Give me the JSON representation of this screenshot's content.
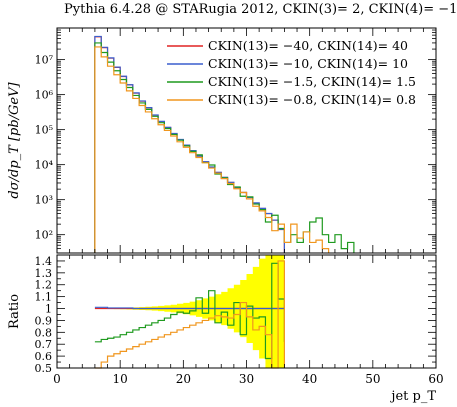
{
  "title": "Pythia 6.4.28 @ STARugia 2012, CKIN(3)= 2, CKIN(4)= −1",
  "chart_data": {
    "type": "line",
    "style": "histogram-step",
    "colors": {
      "red": "#e02424",
      "blue": "#3a5fcd",
      "green": "#1f9a1f",
      "orange": "#f0961e",
      "ratio_band": "#ffff00"
    },
    "main": {
      "ylabel": "dσ/dp_T [pb/GeV]",
      "yscale": "log",
      "ylim": [
        30,
        80000000
      ],
      "yticks": [
        {
          "v": 100,
          "label": "10²"
        },
        {
          "v": 1000,
          "label": "10³"
        },
        {
          "v": 10000,
          "label": "10⁴"
        },
        {
          "v": 100000,
          "label": "10⁵"
        },
        {
          "v": 1000000,
          "label": "10⁶"
        },
        {
          "v": 10000000,
          "label": "10⁷"
        }
      ],
      "legend_position": "top-right",
      "series": [
        {
          "name": "CKIN(13)= −40, CKIN(14)= 40",
          "color": "red",
          "x": [
            6,
            7,
            8,
            9,
            10,
            11,
            12,
            13,
            14,
            15,
            16,
            17,
            18,
            19,
            20,
            21,
            22,
            23,
            24,
            25,
            26,
            27,
            28,
            29,
            30,
            31,
            32,
            33,
            34,
            35
          ],
          "y": [
            45000000,
            22000000,
            11000000,
            6000000,
            3300000,
            1900000,
            1100000,
            650000,
            420000,
            260000,
            170000,
            115000,
            77000,
            52000,
            36000,
            25000,
            17500,
            12000,
            8500,
            6000,
            4300,
            3100,
            2200,
            1600,
            1150,
            800,
            560,
            400,
            260,
            140
          ]
        },
        {
          "name": "CKIN(13)= −10, CKIN(14)= 10",
          "color": "blue",
          "x": [
            6,
            7,
            8,
            9,
            10,
            11,
            12,
            13,
            14,
            15,
            16,
            17,
            18,
            19,
            20,
            21,
            22,
            23,
            24,
            25,
            26,
            27,
            28,
            29,
            30,
            31,
            32,
            33,
            34,
            35
          ],
          "y": [
            46000000,
            22500000,
            11200000,
            6100000,
            3350000,
            1920000,
            1120000,
            660000,
            425000,
            262000,
            172000,
            116000,
            78000,
            52500,
            36300,
            25300,
            17700,
            12100,
            8600,
            6050,
            4330,
            3120,
            2210,
            1610,
            1160,
            810,
            565,
            405,
            262,
            142
          ]
        },
        {
          "name": "CKIN(13)= −1.5, CKIN(14)= 1.5",
          "color": "green",
          "x": [
            6,
            7,
            8,
            9,
            10,
            11,
            12,
            13,
            14,
            15,
            16,
            17,
            18,
            19,
            20,
            21,
            22,
            23,
            24,
            25,
            26,
            27,
            28,
            29,
            30,
            31,
            32,
            33,
            34,
            35,
            36,
            37,
            38,
            39,
            40,
            41,
            42,
            43,
            44,
            45,
            46
          ],
          "y": [
            30000000,
            16000000,
            8500000,
            4800000,
            2700000,
            1600000,
            950000,
            580000,
            380000,
            240000,
            158000,
            108000,
            73000,
            50000,
            34500,
            24000,
            19000,
            11500,
            9800,
            5400,
            4200,
            2700,
            2300,
            1250,
            1200,
            750,
            520,
            230,
            360,
            150,
            60,
            100,
            60,
            120,
            230,
            300,
            100,
            60,
            100,
            40,
            60
          ]
        },
        {
          "name": "CKIN(13)= −0.8, CKIN(14)= 0.8",
          "color": "orange",
          "x": [
            6,
            7,
            8,
            9,
            10,
            11,
            12,
            13,
            14,
            15,
            16,
            17,
            18,
            19,
            20,
            21,
            22,
            23,
            24,
            25,
            26,
            27,
            28,
            29,
            30,
            31,
            32,
            33,
            34,
            35,
            36,
            37,
            38,
            39,
            40,
            41,
            42
          ],
          "y": [
            23000000,
            12000000,
            6500000,
            3700000,
            2150000,
            1280000,
            780000,
            490000,
            320000,
            205000,
            138000,
            95000,
            66000,
            45000,
            31500,
            22000,
            16000,
            11300,
            8000,
            5700,
            4000,
            2900,
            2050,
            1600,
            1050,
            650,
            480,
            310,
            130,
            200,
            60,
            200,
            80,
            120,
            60,
            70,
            40
          ]
        }
      ]
    },
    "ratio": {
      "ylabel": "Ratio",
      "ylim": [
        0.5,
        1.45
      ],
      "yticks": [
        0.5,
        0.6,
        0.7,
        0.8,
        0.9,
        1,
        1.1,
        1.2,
        1.3,
        1.4
      ],
      "xlabel": "jet p_T",
      "xlim": [
        0,
        60
      ],
      "xticks": [
        0,
        10,
        20,
        30,
        40,
        50,
        60
      ],
      "band_x": [
        6,
        7,
        8,
        9,
        10,
        11,
        12,
        13,
        14,
        15,
        16,
        17,
        18,
        19,
        20,
        21,
        22,
        23,
        24,
        25,
        26,
        27,
        28,
        29,
        30,
        31,
        32,
        33,
        34,
        35
      ],
      "band_half_width": [
        0.002,
        0.003,
        0.004,
        0.005,
        0.006,
        0.008,
        0.01,
        0.012,
        0.015,
        0.018,
        0.022,
        0.027,
        0.032,
        0.04,
        0.048,
        0.058,
        0.07,
        0.085,
        0.1,
        0.12,
        0.14,
        0.17,
        0.2,
        0.24,
        0.29,
        0.35,
        0.42,
        0.5,
        0.6,
        0.7
      ],
      "series": [
        {
          "color": "red",
          "x": [
            6,
            7,
            8,
            9,
            10,
            11,
            12,
            13,
            14,
            15,
            16,
            17,
            18,
            19,
            20,
            21,
            22,
            23,
            24,
            25,
            26,
            27,
            28,
            29,
            30,
            31,
            32,
            33,
            34,
            35
          ],
          "y": [
            1,
            1,
            1,
            1,
            1,
            1,
            1,
            1,
            1,
            1,
            1,
            1,
            1,
            1,
            1,
            1,
            1,
            1,
            1,
            1,
            1,
            1,
            1,
            1,
            1,
            1,
            1,
            1,
            1,
            1
          ]
        },
        {
          "color": "blue",
          "x": [
            6,
            7,
            8,
            9,
            10,
            11,
            12,
            13,
            14,
            15,
            16,
            17,
            18,
            19,
            20,
            21,
            22,
            23,
            24,
            25,
            26,
            27,
            28,
            29,
            30,
            31,
            32,
            33,
            34,
            35
          ],
          "y": [
            1.01,
            1.01,
            1.005,
            1.005,
            1.005,
            1.005,
            1,
            1,
            1,
            1,
            1,
            1,
            1,
            1,
            1,
            1,
            1,
            1,
            1,
            1,
            1,
            1,
            1,
            1,
            1,
            1,
            1,
            1,
            1,
            1
          ]
        },
        {
          "color": "green",
          "x": [
            6,
            7,
            8,
            9,
            10,
            11,
            12,
            13,
            14,
            15,
            16,
            17,
            18,
            19,
            20,
            21,
            22,
            23,
            24,
            25,
            26,
            27,
            28,
            29,
            30,
            31,
            32,
            33,
            34,
            35
          ],
          "y": [
            0.72,
            0.74,
            0.75,
            0.76,
            0.78,
            0.8,
            0.82,
            0.84,
            0.86,
            0.88,
            0.9,
            0.92,
            0.95,
            0.97,
            0.96,
            0.98,
            1.09,
            0.96,
            1.15,
            0.88,
            0.97,
            0.86,
            1.05,
            0.78,
            1.02,
            0.92,
            0.93,
            0.58,
            1.38,
            1.08
          ]
        },
        {
          "color": "orange",
          "x": [
            6,
            7,
            8,
            9,
            10,
            11,
            12,
            13,
            14,
            15,
            16,
            17,
            18,
            19,
            20,
            21,
            22,
            23,
            24,
            25,
            26,
            27,
            28,
            29,
            30,
            31,
            32,
            33,
            34,
            35
          ],
          "y": [
            0.5,
            0.55,
            0.6,
            0.62,
            0.64,
            0.66,
            0.68,
            0.7,
            0.72,
            0.74,
            0.76,
            0.78,
            0.8,
            0.82,
            0.84,
            0.86,
            0.88,
            0.9,
            0.92,
            0.94,
            0.93,
            0.92,
            0.95,
            1.05,
            0.93,
            0.82,
            0.85,
            0.78,
            0.5,
            1.4
          ]
        }
      ]
    }
  }
}
